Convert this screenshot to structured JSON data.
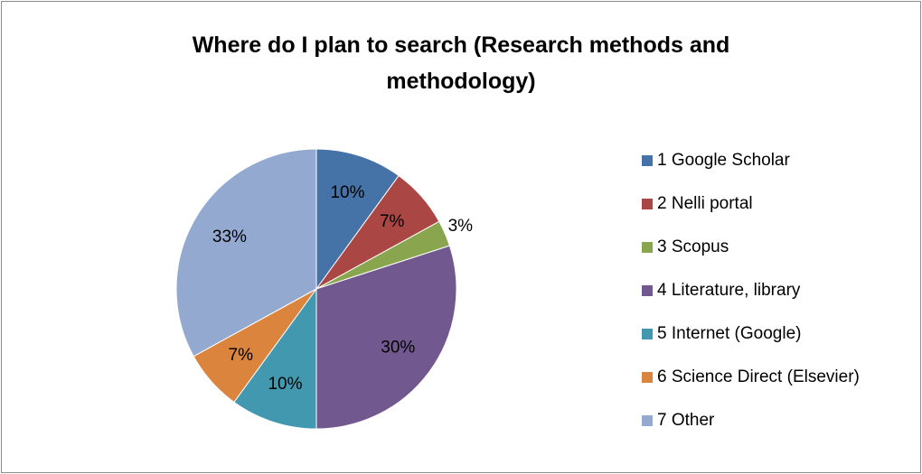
{
  "chart_data": {
    "type": "pie",
    "title": "Where do I plan to search (Research methods and methodology)",
    "categories": [
      "1 Google Scholar",
      "2 Nelli portal",
      "3 Scopus",
      "4 Literature, library",
      "5 Internet (Google)",
      "6 Science Direct (Elsevier)",
      "7 Other"
    ],
    "values": [
      10,
      7,
      3,
      30,
      10,
      7,
      33
    ],
    "value_labels": [
      "10%",
      "7%",
      "3%",
      "30%",
      "10%",
      "7%",
      "33%"
    ],
    "colors": [
      "#4572a7",
      "#aa4643",
      "#89a54e",
      "#71588f",
      "#4198af",
      "#db843d",
      "#93a9cf"
    ],
    "legend": "right"
  }
}
